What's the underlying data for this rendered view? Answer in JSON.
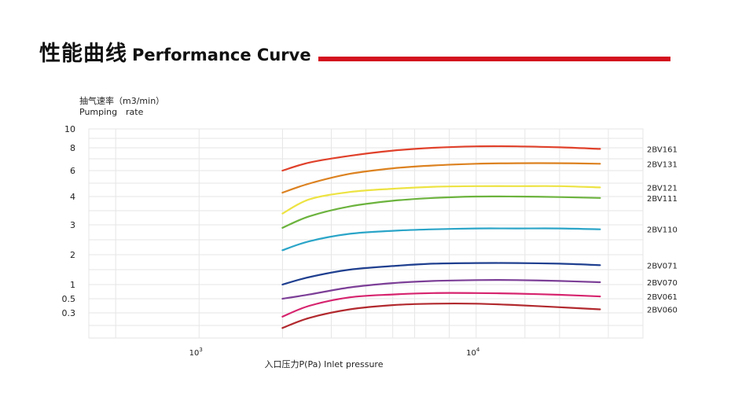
{
  "header": {
    "title_cn": "性能曲线",
    "title_en": "Performance Curve",
    "accent_color": "#d4101e"
  },
  "chart_data": {
    "type": "line",
    "title": "Performance Curve",
    "ylabel_cn": "抽气速率（m3/min）",
    "ylabel_en1": "Pumping",
    "ylabel_en2": "rate",
    "xlabel": "入口压力P(Pa) Inlet pressure",
    "x_scale": "log",
    "xlim": [
      400,
      40000
    ],
    "x_ticks": [
      {
        "value": 1000,
        "base": "10",
        "exp": "3"
      },
      {
        "value": 10000,
        "base": "10",
        "exp": "4"
      }
    ],
    "x_grid": [
      500,
      1000,
      2000,
      3000,
      4000,
      5000,
      6000,
      8000,
      10000,
      15000,
      20000,
      30000
    ],
    "y_ticks": [
      {
        "value": 10,
        "label": "10"
      },
      {
        "value": 8,
        "label": "8"
      },
      {
        "value": 6,
        "label": "6"
      },
      {
        "value": 4,
        "label": "4"
      },
      {
        "value": 3,
        "label": "3"
      },
      {
        "value": 2,
        "label": "2"
      },
      {
        "value": 1,
        "label": "1"
      },
      {
        "value": 0.5,
        "label": "0.5"
      },
      {
        "value": 0.3,
        "label": "0.3"
      }
    ],
    "grid": true,
    "series": [
      {
        "name": "2BV161",
        "color": "#e0412b",
        "x": [
          2000,
          2500,
          3500,
          5000,
          7000,
          10000,
          14000,
          20000,
          28000
        ],
        "y": [
          6.0,
          6.7,
          7.3,
          7.75,
          8.0,
          8.15,
          8.15,
          8.05,
          7.9
        ]
      },
      {
        "name": "2BV131",
        "color": "#dc8221",
        "x": [
          2000,
          2500,
          3500,
          5000,
          7000,
          10000,
          14000,
          20000,
          28000
        ],
        "y": [
          4.3,
          5.0,
          5.75,
          6.2,
          6.45,
          6.6,
          6.65,
          6.65,
          6.6
        ]
      },
      {
        "name": "2BV121",
        "color": "#ede343",
        "x": [
          2000,
          2500,
          3500,
          5000,
          7000,
          10000,
          14000,
          20000,
          28000
        ],
        "y": [
          3.4,
          3.9,
          4.35,
          4.6,
          4.75,
          4.8,
          4.8,
          4.8,
          4.7
        ]
      },
      {
        "name": "2BV111",
        "color": "#6cb33e",
        "x": [
          2000,
          2500,
          3500,
          5000,
          7000,
          10000,
          14000,
          20000,
          28000
        ],
        "y": [
          2.9,
          3.3,
          3.65,
          3.85,
          3.95,
          4.0,
          4.0,
          3.98,
          3.95
        ]
      },
      {
        "name": "2BV110",
        "color": "#2ba5c8",
        "x": [
          2000,
          2500,
          3500,
          5000,
          7000,
          10000,
          14000,
          20000,
          28000
        ],
        "y": [
          2.15,
          2.45,
          2.7,
          2.8,
          2.85,
          2.88,
          2.88,
          2.88,
          2.85
        ]
      },
      {
        "name": "2BV071",
        "color": "#1f3f8f",
        "x": [
          2000,
          2500,
          3500,
          5000,
          7000,
          10000,
          14000,
          20000,
          28000
        ],
        "y": [
          1.0,
          1.25,
          1.5,
          1.62,
          1.7,
          1.72,
          1.72,
          1.7,
          1.65
        ]
      },
      {
        "name": "2BV070",
        "color": "#7c3f97",
        "x": [
          2000,
          2500,
          3500,
          5000,
          7000,
          10000,
          14000,
          20000,
          28000
        ],
        "y": [
          0.5,
          0.65,
          0.9,
          1.05,
          1.12,
          1.15,
          1.15,
          1.12,
          1.08
        ]
      },
      {
        "name": "2BV061",
        "color": "#d6246e",
        "x": [
          2000,
          2500,
          3500,
          5000,
          7000,
          10000,
          14000,
          20000,
          28000
        ],
        "y": [
          0.27,
          0.4,
          0.55,
          0.65,
          0.7,
          0.7,
          0.68,
          0.64,
          0.58
        ]
      },
      {
        "name": "2BV060",
        "color": "#b1292e",
        "x": [
          2000,
          2500,
          3500,
          5000,
          7000,
          10000,
          14000,
          20000,
          28000
        ],
        "y": [
          0.18,
          0.26,
          0.35,
          0.41,
          0.43,
          0.43,
          0.41,
          0.38,
          0.35
        ]
      }
    ]
  }
}
